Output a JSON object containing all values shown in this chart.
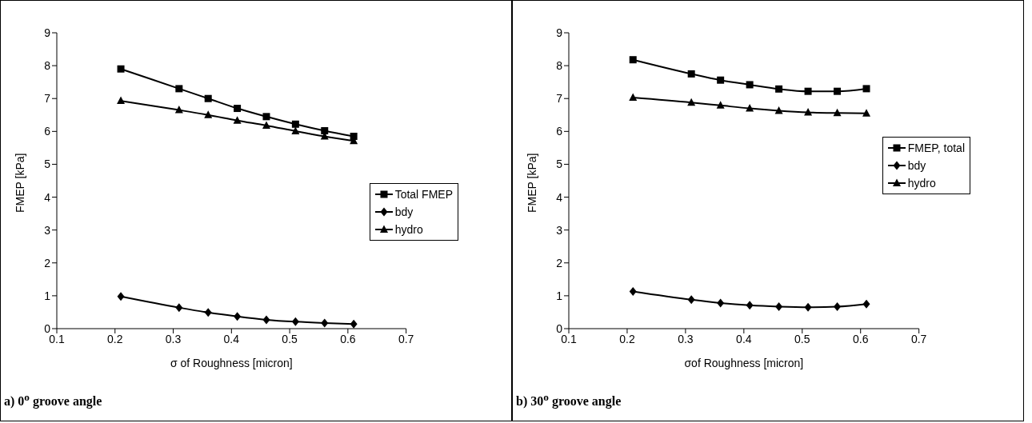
{
  "chart_data": [
    {
      "type": "line",
      "x": [
        0.21,
        0.31,
        0.36,
        0.41,
        0.46,
        0.51,
        0.56,
        0.61
      ],
      "xlabel": "σ of Roughness [micron]",
      "ylabel": "FMEP [kPa]",
      "xlim": [
        0.1,
        0.7
      ],
      "xticks": [
        0.1,
        0.2,
        0.3,
        0.4,
        0.5,
        0.6,
        0.7
      ],
      "ylim": [
        0,
        9
      ],
      "yticks": [
        0,
        1,
        2,
        3,
        4,
        5,
        6,
        7,
        8,
        9
      ],
      "grid": false,
      "legend": "right",
      "line_style": "solid",
      "annotations": [
        "a) 0$^{o}$ groove angle"
      ],
      "series": [
        {
          "name": "Total FMEP",
          "color": "#000000",
          "marker": "square",
          "values": [
            7.9,
            7.3,
            7.0,
            6.7,
            6.45,
            6.22,
            6.02,
            5.85
          ]
        },
        {
          "name": "bdy",
          "color": "#000000",
          "marker": "diamond",
          "values": [
            0.98,
            0.64,
            0.49,
            0.37,
            0.27,
            0.21,
            0.17,
            0.14
          ]
        },
        {
          "name": "hydro",
          "color": "#000000",
          "marker": "triangle",
          "values": [
            6.93,
            6.65,
            6.5,
            6.33,
            6.18,
            6.01,
            5.85,
            5.71
          ]
        }
      ]
    },
    {
      "type": "line",
      "x": [
        0.21,
        0.31,
        0.36,
        0.41,
        0.46,
        0.51,
        0.56,
        0.61
      ],
      "xlabel": "σof Roughness [micron]",
      "ylabel": "FMEP [kPa]",
      "xlim": [
        0.1,
        0.7
      ],
      "xticks": [
        0.1,
        0.2,
        0.3,
        0.4,
        0.5,
        0.6,
        0.7
      ],
      "ylim": [
        0,
        9
      ],
      "yticks": [
        0,
        1,
        2,
        3,
        4,
        5,
        6,
        7,
        8,
        9
      ],
      "grid": false,
      "legend": "top right",
      "line_style": "solid",
      "annotations": [
        "b) 30$^{o}$ groove angle"
      ],
      "series": [
        {
          "name": "FMEP, total",
          "color": "#000000",
          "marker": "square",
          "values": [
            8.18,
            7.75,
            7.56,
            7.42,
            7.29,
            7.22,
            7.22,
            7.3
          ]
        },
        {
          "name": "bdy",
          "color": "#000000",
          "marker": "diamond",
          "values": [
            1.13,
            0.88,
            0.78,
            0.71,
            0.67,
            0.65,
            0.67,
            0.75
          ]
        },
        {
          "name": "hydro",
          "color": "#000000",
          "marker": "triangle",
          "values": [
            7.03,
            6.88,
            6.79,
            6.7,
            6.63,
            6.58,
            6.56,
            6.55
          ]
        }
      ]
    }
  ]
}
